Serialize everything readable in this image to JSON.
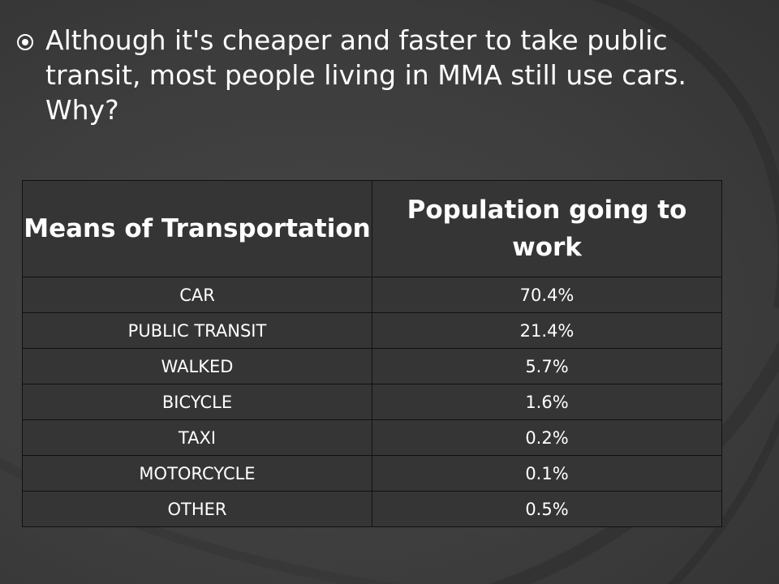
{
  "slide": {
    "bullet_icon": "circled-dot-icon",
    "bullet_text": "Although it's cheaper and faster to take public transit, most people living in MMA still use cars. Why?"
  },
  "table": {
    "headers": [
      "Means of Transportation",
      "Population going to work"
    ],
    "rows": [
      {
        "mode": "CAR",
        "share": "70.4%"
      },
      {
        "mode": "PUBLIC TRANSIT",
        "share": "21.4%"
      },
      {
        "mode": "WALKED",
        "share": "5.7%"
      },
      {
        "mode": "BICYCLE",
        "share": "1.6%"
      },
      {
        "mode": "TAXI",
        "share": "0.2%"
      },
      {
        "mode": "MOTORCYCLE",
        "share": "0.1%"
      },
      {
        "mode": "OTHER",
        "share": "0.5%"
      }
    ]
  },
  "colors": {
    "background": "#3b3b3b",
    "table_fill": "#353535",
    "border": "#111111",
    "text": "#ffffff"
  }
}
